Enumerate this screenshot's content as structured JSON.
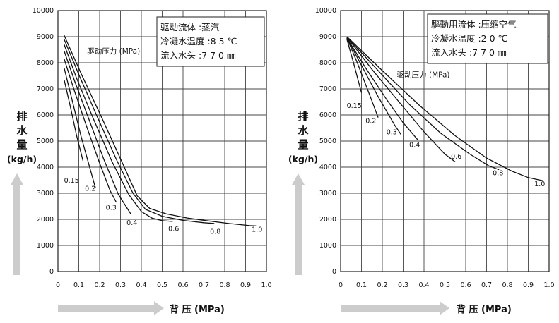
{
  "chart_data": [
    {
      "type": "line",
      "xlabel": "背 压 (MPa)",
      "ylabel": [
        "排",
        "水",
        "量",
        "(kg/h)"
      ],
      "xlim": [
        0,
        1.0
      ],
      "ylim": [
        0,
        10000
      ],
      "x_ticks": [
        "0",
        "0.1",
        "0.2",
        "0.3",
        "0.4",
        "0.5",
        "0.6",
        "0.7",
        "0.8",
        "0.9",
        "1.0"
      ],
      "y_ticks": [
        "0",
        "1000",
        "2000",
        "3000",
        "4000",
        "5000",
        "6000",
        "7000",
        "8000",
        "9000",
        "10000"
      ],
      "grid": true,
      "series_label": "驱动压力 (MPa)",
      "info_box": [
        "驱动流体 :蒸汽",
        "冷凝水温度 :8 5 ℃",
        "流入水头 :7 7 0 ㎜"
      ],
      "series": [
        {
          "name": "0.15",
          "points": [
            [
              0.03,
              7350
            ],
            [
              0.06,
              6300
            ],
            [
              0.09,
              5200
            ],
            [
              0.12,
              4250
            ]
          ]
        },
        {
          "name": "0.2",
          "points": [
            [
              0.03,
              7800
            ],
            [
              0.07,
              6500
            ],
            [
              0.11,
              5200
            ],
            [
              0.15,
              4050
            ],
            [
              0.18,
              3200
            ]
          ]
        },
        {
          "name": "0.3",
          "points": [
            [
              0.03,
              8150
            ],
            [
              0.08,
              6900
            ],
            [
              0.14,
              5500
            ],
            [
              0.2,
              4150
            ],
            [
              0.25,
              3100
            ],
            [
              0.28,
              2650
            ]
          ]
        },
        {
          "name": "0.4",
          "points": [
            [
              0.03,
              8450
            ],
            [
              0.08,
              7300
            ],
            [
              0.15,
              5800
            ],
            [
              0.22,
              4300
            ],
            [
              0.29,
              2950
            ],
            [
              0.35,
              2200
            ]
          ]
        },
        {
          "name": "0.6",
          "points": [
            [
              0.03,
              8700
            ],
            [
              0.09,
              7400
            ],
            [
              0.17,
              5850
            ],
            [
              0.26,
              4200
            ],
            [
              0.34,
              2950
            ],
            [
              0.4,
              2300
            ],
            [
              0.45,
              2050
            ],
            [
              0.5,
              1950
            ],
            [
              0.55,
              1920
            ]
          ]
        },
        {
          "name": "0.8",
          "points": [
            [
              0.03,
              8900
            ],
            [
              0.1,
              7550
            ],
            [
              0.19,
              5900
            ],
            [
              0.28,
              4300
            ],
            [
              0.36,
              3000
            ],
            [
              0.42,
              2380
            ],
            [
              0.5,
              2120
            ],
            [
              0.6,
              1960
            ],
            [
              0.7,
              1870
            ],
            [
              0.75,
              1840
            ]
          ]
        },
        {
          "name": "1.0",
          "points": [
            [
              0.03,
              9050
            ],
            [
              0.11,
              7600
            ],
            [
              0.21,
              5900
            ],
            [
              0.31,
              4150
            ],
            [
              0.38,
              2900
            ],
            [
              0.44,
              2420
            ],
            [
              0.52,
              2210
            ],
            [
              0.62,
              2050
            ],
            [
              0.72,
              1940
            ],
            [
              0.82,
              1840
            ],
            [
              0.92,
              1760
            ],
            [
              0.95,
              1750
            ]
          ]
        }
      ],
      "series_labels": [
        {
          "name": "0.15",
          "x": 0.065,
          "y": 3400
        },
        {
          "name": "0.2",
          "x": 0.155,
          "y": 3100
        },
        {
          "name": "0.3",
          "x": 0.255,
          "y": 2360
        },
        {
          "name": "0.4",
          "x": 0.355,
          "y": 1790
        },
        {
          "name": "0.6",
          "x": 0.555,
          "y": 1550
        },
        {
          "name": "0.8",
          "x": 0.755,
          "y": 1450
        },
        {
          "name": "1.0",
          "x": 0.955,
          "y": 1530
        }
      ],
      "series_label_pos": {
        "x": 0.14,
        "y": 8350
      }
    },
    {
      "type": "line",
      "xlabel": "背 压 (MPa)",
      "ylabel": [
        "排",
        "水",
        "量",
        "(kg/h)"
      ],
      "xlim": [
        0,
        1.0
      ],
      "ylim": [
        0,
        10000
      ],
      "x_ticks": [
        "0",
        "0.1",
        "0.2",
        "0.3",
        "0.4",
        "0.5",
        "0.6",
        "0.7",
        "0.8",
        "0.9",
        "1.0"
      ],
      "y_ticks": [
        "0",
        "1000",
        "2000",
        "3000",
        "4000",
        "5000",
        "6000",
        "7000",
        "8000",
        "9000",
        "10000"
      ],
      "grid": true,
      "series_label": "驱动压力 (MPa)",
      "info_box": [
        "驅動用流体 :压缩空气",
        "冷凝水温度 :2 0 ℃",
        "流入水头 :7 7 0 ㎜"
      ],
      "series": [
        {
          "name": "0.15",
          "points": [
            [
              0.03,
              8900
            ],
            [
              0.06,
              8050
            ],
            [
              0.1,
              6850
            ]
          ]
        },
        {
          "name": "0.2",
          "points": [
            [
              0.03,
              8950
            ],
            [
              0.08,
              8000
            ],
            [
              0.14,
              6750
            ],
            [
              0.18,
              5900
            ]
          ]
        },
        {
          "name": "0.3",
          "points": [
            [
              0.03,
              8950
            ],
            [
              0.1,
              7900
            ],
            [
              0.18,
              6700
            ],
            [
              0.26,
              5600
            ],
            [
              0.29,
              5250
            ]
          ]
        },
        {
          "name": "0.4",
          "points": [
            [
              0.03,
              8950
            ],
            [
              0.12,
              7800
            ],
            [
              0.22,
              6600
            ],
            [
              0.3,
              5700
            ],
            [
              0.37,
              5050
            ]
          ]
        },
        {
          "name": "0.6",
          "points": [
            [
              0.03,
              8980
            ],
            [
              0.15,
              7750
            ],
            [
              0.28,
              6500
            ],
            [
              0.4,
              5350
            ],
            [
              0.5,
              4500
            ],
            [
              0.55,
              4200
            ]
          ]
        },
        {
          "name": "0.8",
          "points": [
            [
              0.03,
              8980
            ],
            [
              0.18,
              7700
            ],
            [
              0.33,
              6400
            ],
            [
              0.48,
              5300
            ],
            [
              0.62,
              4500
            ],
            [
              0.71,
              4050
            ],
            [
              0.76,
              3900
            ]
          ]
        },
        {
          "name": "1.0",
          "points": [
            [
              0.03,
              9000
            ],
            [
              0.2,
              7700
            ],
            [
              0.38,
              6350
            ],
            [
              0.55,
              5200
            ],
            [
              0.7,
              4350
            ],
            [
              0.82,
              3850
            ],
            [
              0.9,
              3600
            ],
            [
              0.97,
              3480
            ]
          ]
        }
      ],
      "series_labels": [
        {
          "name": "0.15",
          "x": 0.065,
          "y": 6270
        },
        {
          "name": "0.2",
          "x": 0.145,
          "y": 5690
        },
        {
          "name": "0.3",
          "x": 0.245,
          "y": 5260
        },
        {
          "name": "0.4",
          "x": 0.355,
          "y": 4770
        },
        {
          "name": "0.6",
          "x": 0.555,
          "y": 4330
        },
        {
          "name": "0.8",
          "x": 0.755,
          "y": 3690
        },
        {
          "name": "1.0",
          "x": 0.955,
          "y": 3270
        }
      ],
      "series_label_pos": {
        "x": 0.27,
        "y": 7450
      }
    }
  ]
}
